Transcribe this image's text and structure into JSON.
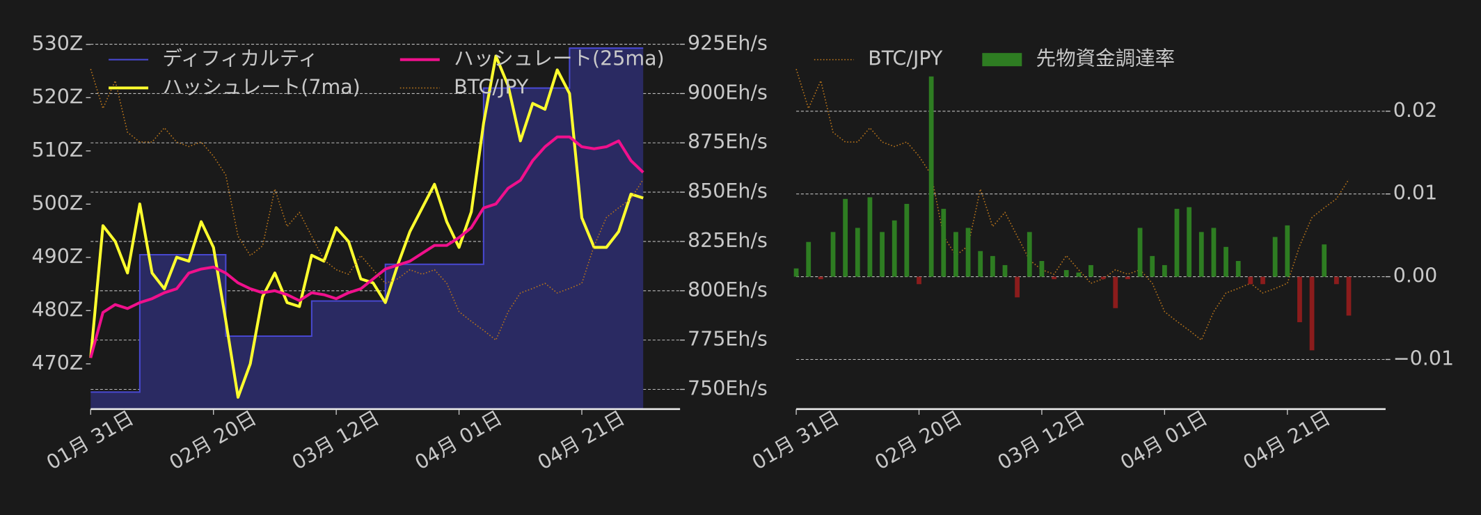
{
  "chart_data": [
    {
      "type": "line",
      "legend": "upper left",
      "legend_columns": 2,
      "grid": true,
      "grid_axis": "y2",
      "x": [
        0,
        2,
        4,
        6,
        8,
        10,
        12,
        14,
        16,
        18,
        20,
        22,
        24,
        26,
        28,
        30,
        32,
        34,
        36,
        38,
        40,
        42,
        44,
        46,
        48,
        50,
        52,
        54,
        56,
        58,
        60,
        62,
        64,
        66,
        68,
        70,
        72,
        74,
        76,
        78,
        80,
        82,
        84,
        86,
        88,
        90
      ],
      "xlim": [
        0,
        96
      ],
      "xticks": [
        {
          "value": 0,
          "label": "01月 31日"
        },
        {
          "value": 20,
          "label": "02月 20日"
        },
        {
          "value": 40,
          "label": "03月 12日"
        },
        {
          "value": 60,
          "label": "04月 01日"
        },
        {
          "value": 80,
          "label": "04月 21日"
        }
      ],
      "ylim": [
        461.5,
        533
      ],
      "yticks": [
        {
          "value": 470,
          "label": "470Z"
        },
        {
          "value": 480,
          "label": "480Z"
        },
        {
          "value": 490,
          "label": "490Z"
        },
        {
          "value": 500,
          "label": "500Z"
        },
        {
          "value": 510,
          "label": "510Z"
        },
        {
          "value": 520,
          "label": "520Z"
        },
        {
          "value": 530,
          "label": "530Z"
        }
      ],
      "y2lim": [
        740,
        933
      ],
      "y2ticks": [
        {
          "value": 750,
          "label": "750Eh/s"
        },
        {
          "value": 775,
          "label": "775Eh/s"
        },
        {
          "value": 800,
          "label": "800Eh/s"
        },
        {
          "value": 825,
          "label": "825Eh/s"
        },
        {
          "value": 850,
          "label": "850Eh/s"
        },
        {
          "value": 875,
          "label": "875Eh/s"
        },
        {
          "value": 900,
          "label": "900Eh/s"
        },
        {
          "value": 925,
          "label": "925Eh/s"
        }
      ],
      "y3lim": [
        10.9,
        16.8
      ],
      "series": [
        {
          "name": "ディフィカルティ",
          "type": "step",
          "axis": "y",
          "color": "#4848d0",
          "fill": "#2a2a62",
          "values": [
            464.7,
            464.7,
            464.7,
            464.7,
            490.5,
            490.5,
            490.5,
            490.5,
            490.5,
            490.5,
            490.5,
            475.2,
            475.2,
            475.2,
            475.2,
            475.2,
            475.2,
            475.2,
            481.8,
            481.8,
            481.8,
            481.8,
            481.8,
            481.8,
            488.7,
            488.7,
            488.7,
            488.7,
            488.7,
            488.7,
            488.7,
            488.7,
            521.8,
            521.8,
            521.8,
            521.8,
            521.8,
            521.8,
            521.8,
            529.3,
            529.3,
            529.3,
            529.3,
            529.3,
            529.3,
            529.3
          ]
        },
        {
          "name": "ハッシュレート(7ma)",
          "type": "line",
          "axis": "y2",
          "color": "#ffff2e",
          "values": [
            766,
            833,
            825,
            809,
            844,
            809,
            801,
            817,
            815,
            835,
            822,
            785,
            746,
            763,
            797,
            809,
            794,
            792,
            818,
            815,
            832,
            825,
            806,
            804,
            794,
            813,
            830,
            842,
            854,
            835,
            822,
            840,
            885,
            919,
            904,
            876,
            895,
            892,
            912,
            900,
            837,
            822,
            822,
            830,
            849,
            847
          ]
        },
        {
          "name": "ハッシュレート(25ma)",
          "type": "line",
          "axis": "y2",
          "color": "#f0108c",
          "values": [
            766,
            789,
            793,
            791,
            794,
            796,
            799,
            801,
            809,
            811,
            812,
            809,
            804,
            801,
            799,
            800,
            798,
            795,
            799,
            798,
            796,
            799,
            801,
            806,
            811,
            813,
            815,
            819,
            823,
            823,
            827,
            832,
            842,
            844,
            852,
            856,
            866,
            873,
            878,
            878,
            873,
            872,
            873,
            876,
            866,
            860
          ]
        },
        {
          "name": "BTC/JPY",
          "type": "line",
          "axis": "y3",
          "color": "#b8741a",
          "style": "dotted",
          "values": [
            16.17,
            15.56,
            15.99,
            15.19,
            15.04,
            15.04,
            15.26,
            15.04,
            14.97,
            15.04,
            14.82,
            14.53,
            13.58,
            13.28,
            13.43,
            14.31,
            13.73,
            13.95,
            13.58,
            13.21,
            13.06,
            12.99,
            13.28,
            13.06,
            12.85,
            12.92,
            13.06,
            12.99,
            13.06,
            12.85,
            12.41,
            12.26,
            12.12,
            11.97,
            12.41,
            12.7,
            12.77,
            12.85,
            12.7,
            12.77,
            12.85,
            13.43,
            13.87,
            14.02,
            14.16,
            14.46
          ]
        }
      ]
    },
    {
      "type": "bar",
      "legend": "upper left",
      "legend_columns": 2,
      "grid": true,
      "grid_axis": "y2",
      "x": [
        0,
        2,
        4,
        6,
        8,
        10,
        12,
        14,
        16,
        18,
        20,
        22,
        24,
        26,
        28,
        30,
        32,
        34,
        36,
        38,
        40,
        42,
        44,
        46,
        48,
        50,
        52,
        54,
        56,
        58,
        60,
        62,
        64,
        66,
        68,
        70,
        72,
        74,
        76,
        78,
        80,
        82,
        84,
        86,
        88,
        90
      ],
      "xlim": [
        0,
        96
      ],
      "xticks": [
        {
          "value": 0,
          "label": "01月 31日"
        },
        {
          "value": 20,
          "label": "02月 20日"
        },
        {
          "value": 40,
          "label": "03月 12日"
        },
        {
          "value": 60,
          "label": "04月 01日"
        },
        {
          "value": 80,
          "label": "04月 21日"
        }
      ],
      "y2lim": [
        -0.016,
        0.03
      ],
      "y2ticks": [
        {
          "value": -0.01,
          "label": "−0.01"
        },
        {
          "value": 0,
          "label": "0.00"
        },
        0.01,
        0.02
      ],
      "y3lim": [
        10.9,
        16.8
      ],
      "series": [
        {
          "name": "BTC/JPY",
          "type": "line",
          "axis": "y3",
          "color": "#b8741a",
          "style": "dotted",
          "values": [
            16.17,
            15.56,
            15.99,
            15.19,
            15.04,
            15.04,
            15.26,
            15.04,
            14.97,
            15.04,
            14.82,
            14.53,
            13.58,
            13.28,
            13.43,
            14.31,
            13.73,
            13.95,
            13.58,
            13.21,
            13.06,
            12.99,
            13.28,
            13.06,
            12.85,
            12.92,
            13.06,
            12.99,
            13.06,
            12.85,
            12.41,
            12.26,
            12.12,
            11.97,
            12.41,
            12.7,
            12.77,
            12.85,
            12.7,
            12.77,
            12.85,
            13.43,
            13.87,
            14.02,
            14.16,
            14.46
          ]
        },
        {
          "name": "先物資金調達率",
          "type": "bar",
          "axis": "y2",
          "color": "#2e7d22",
          "negative_color": "#8b1c1c",
          "values": [
            0.001,
            0.0042,
            -0.0003,
            0.0054,
            0.0094,
            0.0059,
            0.0096,
            0.0054,
            0.0068,
            0.0088,
            -0.0009,
            0.0242,
            0.0082,
            0.0054,
            0.0059,
            0.0031,
            0.0025,
            0.0014,
            -0.0025,
            0.0054,
            0.0019,
            -0.0003,
            0.0008,
            0.0005,
            0.0014,
            -0.0003,
            -0.0038,
            -0.0003,
            0.0059,
            0.0025,
            0.0014,
            0.0082,
            0.0084,
            0.0054,
            0.0059,
            0.0036,
            0.0019,
            -0.0009,
            -0.0009,
            0.0048,
            0.0062,
            -0.0055,
            -0.0089,
            0.0039,
            -0.0009,
            -0.0047
          ]
        }
      ]
    }
  ]
}
